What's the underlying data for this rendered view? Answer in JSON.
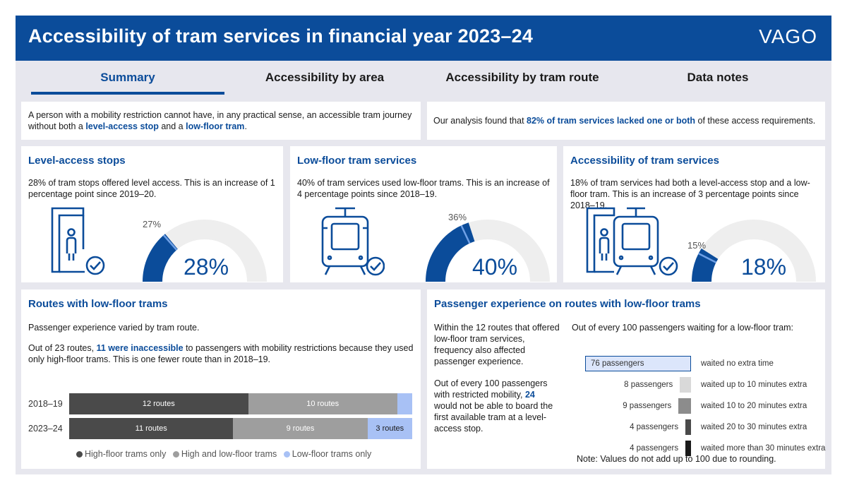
{
  "header": {
    "title": "Accessibility of tram services in financial year 2023–24",
    "logo": "VAGO"
  },
  "tabs": [
    {
      "label": "Summary"
    },
    {
      "label": "Accessibility by area"
    },
    {
      "label": "Accessibility by tram route"
    },
    {
      "label": "Data notes"
    }
  ],
  "intro": {
    "left_pre": "A person with a mobility restriction cannot have, in any practical sense, an accessible tram journey without both a ",
    "left_hl1": "level-access stop",
    "left_mid": " and a ",
    "left_hl2": "low-floor tram",
    "left_post": ".",
    "right_pre": "Our analysis found that ",
    "right_hl": "82% of tram services lacked one or both",
    "right_post": " of these access requirements."
  },
  "colors": {
    "primary": "#0b4c9a",
    "high_floor": "#4a4a4a",
    "mixed": "#9e9e9e",
    "low_floor": "#a8c1f5",
    "track": "#eeeeee",
    "marker": "#6fa0e6"
  },
  "kpis": [
    {
      "title": "Level-access stops",
      "desc": "28% of tram stops offered level access. This is an increase of 1 percentage point since 2019–20.",
      "value": 28,
      "value_label": "28%",
      "prev": 27,
      "prev_label": "27%",
      "icon": "level-access-stop-icon"
    },
    {
      "title": "Low-floor tram services",
      "desc": "40% of tram services used low-floor trams. This is an increase of 4 percentage points since 2018–19.",
      "value": 40,
      "value_label": "40%",
      "prev": 36,
      "prev_label": "36%",
      "icon": "tram-icon"
    },
    {
      "title": "Accessibility of tram services",
      "desc": "18% of tram services had both a level-access stop and a low-floor tram. This is an increase of 3 percentage points since 2018–19.",
      "value": 18,
      "value_label": "18%",
      "prev": 15,
      "prev_label": "15%",
      "icon": "stop-and-tram-icon"
    }
  ],
  "routes": {
    "title": "Routes with low-floor trams",
    "p1": "Passenger experience varied by tram route.",
    "p2_pre": "Out of 23 routes, ",
    "p2_hl": "11 were inaccessible",
    "p2_post": " to passengers with mobility restrictions because they used only high-floor trams. This is one fewer route than in 2018–19.",
    "legend": [
      "High-floor trams only",
      "High and low-floor trams",
      "Low-floor trams only"
    ]
  },
  "chart_data": {
    "type": "bar",
    "orientation": "horizontal-stacked",
    "categories": [
      "2018–19",
      "2023–24"
    ],
    "series": [
      {
        "name": "High-floor trams only",
        "values": [
          12,
          11
        ],
        "labels": [
          "12 routes",
          "11 routes"
        ]
      },
      {
        "name": "High and low-floor trams",
        "values": [
          10,
          9
        ],
        "labels": [
          "10 routes",
          "9 routes"
        ]
      },
      {
        "name": "Low-floor trams only",
        "values": [
          1,
          3
        ],
        "labels": [
          "",
          "3 routes"
        ]
      }
    ],
    "total": 23
  },
  "passenger": {
    "title": "Passenger experience on routes with low-floor trams",
    "p1": "Within the 12 routes that offered low-floor tram services, frequency also affected passenger experience.",
    "p2_pre": "Out of every 100 passengers with restricted mobility, ",
    "p2_hl": "24",
    "p2_post": " would not be able to board the first available tram at a level-access stop.",
    "chart_title": "Out of every 100 passengers waiting for a low-floor tram:",
    "rows": [
      {
        "value": 76,
        "label": "76 passengers",
        "desc": "waited no extra time",
        "color": "#dce6fb"
      },
      {
        "value": 8,
        "label": "8 passengers",
        "desc": "waited up to 10 minutes extra",
        "color": "#d9d9d9"
      },
      {
        "value": 9,
        "label": "9 passengers",
        "desc": "waited 10 to 20 minutes extra",
        "color": "#8c8c8c"
      },
      {
        "value": 4,
        "label": "4 passengers",
        "desc": "waited 20 to 30 minutes extra",
        "color": "#4a4a4a"
      },
      {
        "value": 4,
        "label": "4 passengers",
        "desc": "waited more than 30 minutes extra",
        "color": "#1a1a1a"
      }
    ],
    "note": "Note: Values do not add up to 100 due to rounding."
  }
}
